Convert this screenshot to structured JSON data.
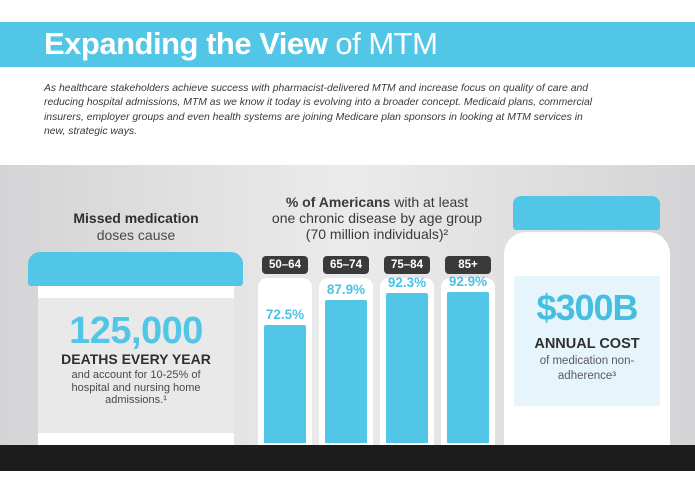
{
  "header": {
    "title_bold": "Expanding the View",
    "title_light": "of MTM"
  },
  "intro": "As healthcare stakeholders achieve success with pharmacist-delivered MTM and increase focus on quality of care and reducing hospital admissions, MTM as we know it today is evolving into a broader concept. Medicaid plans, commercial insurers, employer groups and even health systems are joining Medicare plan sponsors in looking at MTM services in new, strategic ways.",
  "missed": {
    "title": "Missed medication",
    "subtitle": "doses cause",
    "number": "125,000",
    "deaths_label": "DEATHS EVERY YEAR",
    "deaths_detail": "and account for 10-25% of hospital and nursing home admissions.¹"
  },
  "chart_data": {
    "type": "bar",
    "title": "% of Americans with at least one chronic disease by age group (70 million individuals)²",
    "title_bold": "% of Americans",
    "title_rest_line1": " with at least",
    "title_line2": "one chronic disease by age group",
    "title_line3": "(70 million individuals)²",
    "categories": [
      "50–64",
      "65–74",
      "75–84",
      "85+"
    ],
    "values": [
      72.5,
      87.9,
      92.3,
      92.9
    ],
    "value_labels": [
      "72.5%",
      "87.9%",
      "92.3%",
      "92.9%"
    ],
    "ylim": [
      0,
      100
    ],
    "xlabel": "",
    "ylabel": ""
  },
  "cost": {
    "amount": "$300B",
    "label": "ANNUAL COST",
    "detail": "of medication non-adherence³"
  },
  "colors": {
    "accent": "#52c6e6",
    "dark": "#2f2f2f",
    "floor": "#1c1c1c"
  }
}
